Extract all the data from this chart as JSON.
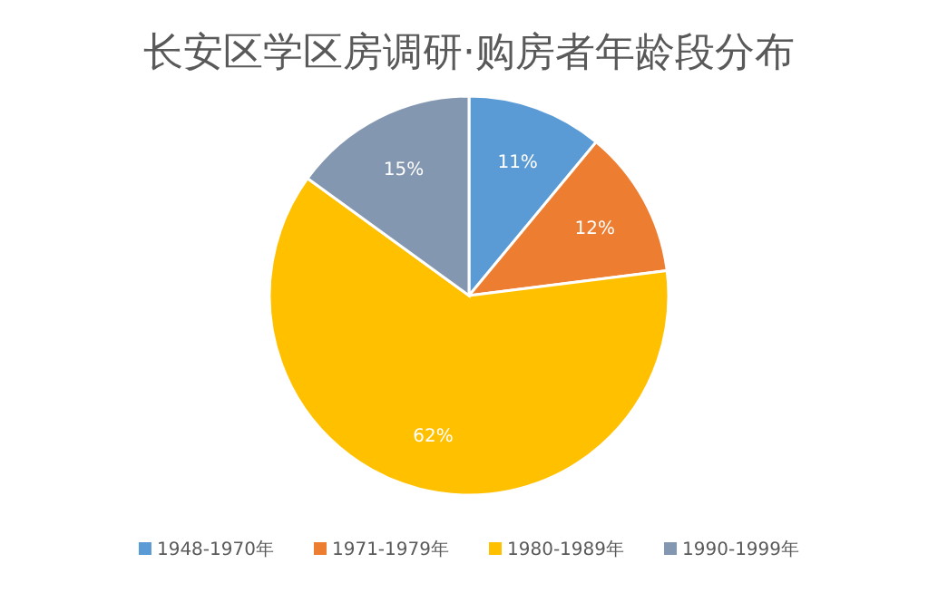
{
  "chart_data": {
    "type": "pie",
    "title": "长安区学区房调研·购房者年龄段分布",
    "categories": [
      "1948-1970年",
      "1971-1979年",
      "1980-1989年",
      "1990-1999年"
    ],
    "values": [
      11,
      12,
      62,
      15
    ],
    "colors": [
      "#5b9bd5",
      "#ed7d31",
      "#ffc000",
      "#8497b0"
    ],
    "value_labels": [
      "11%",
      "12%",
      "62%",
      "15%"
    ],
    "legend": "bottom"
  }
}
